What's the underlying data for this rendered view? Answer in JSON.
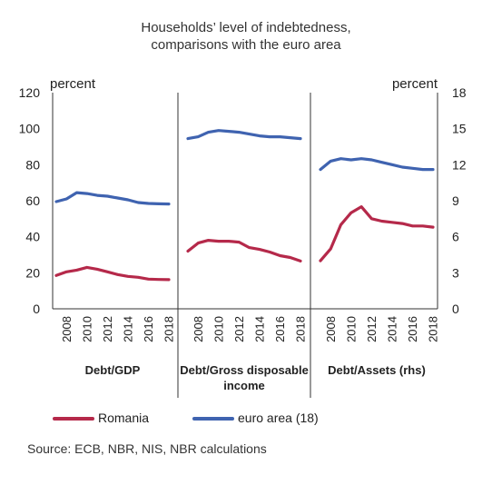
{
  "chart_title": {
    "line1": "Households’ level of indebtedness,",
    "line2": "comparisons with the euro area"
  },
  "axis_units": {
    "left": "percent",
    "right": "percent"
  },
  "legend": {
    "romania_label": "Romania",
    "euro_label": "euro area (18)",
    "romania_color": "#b5294a",
    "euro_color": "#3f63b0"
  },
  "source": "Source: ECB, NBR, NIS, NBR calculations",
  "chart_data": {
    "type": "line",
    "title": "Households’ level of indebtedness, comparisons with the euro area",
    "left_axis": {
      "label": "percent",
      "ylim": [
        0,
        120
      ],
      "ticks": [
        "0",
        "20",
        "40",
        "60",
        "80",
        "100",
        "120"
      ]
    },
    "right_axis": {
      "label": "percent",
      "ylim": [
        0,
        18
      ],
      "ticks": [
        "0",
        "3",
        "6",
        "9",
        "12",
        "15",
        "18"
      ]
    },
    "grid": false,
    "legend_position": "bottom",
    "x_tick_labels": [
      "2008",
      "2010",
      "2012",
      "2014",
      "2016",
      "2018"
    ],
    "panels": [
      {
        "name": "Debt/GDP",
        "axis": "left",
        "x": [
          2007,
          2008,
          2009,
          2010,
          2011,
          2012,
          2013,
          2014,
          2015,
          2016,
          2017,
          2018
        ],
        "series": [
          {
            "name": "Romania",
            "values": [
              18.5,
              20.5,
              21.5,
              23,
              22,
              20.5,
              19,
              18,
              17.5,
              16.5,
              16.3,
              16.2
            ]
          },
          {
            "name": "euro area (18)",
            "values": [
              59.5,
              61,
              64.5,
              64,
              63,
              62.5,
              61.5,
              60.5,
              59,
              58.5,
              58.3,
              58.2
            ]
          }
        ]
      },
      {
        "name": "Debt/Gross disposable income",
        "axis": "left",
        "x": [
          2007,
          2008,
          2009,
          2010,
          2011,
          2012,
          2013,
          2014,
          2015,
          2016,
          2017,
          2018
        ],
        "series": [
          {
            "name": "Romania",
            "values": [
              32,
              36.5,
              38,
              37.5,
              37.5,
              37,
              34,
              33,
              31.5,
              29.5,
              28.5,
              26.5
            ]
          },
          {
            "name": "euro area (18)",
            "values": [
              94.5,
              95.5,
              98,
              99,
              98.5,
              98,
              97,
              96,
              95.5,
              95.5,
              95,
              94.5
            ]
          }
        ]
      },
      {
        "name": "Debt/Assets (rhs)",
        "axis": "right",
        "x": [
          2007,
          2008,
          2009,
          2010,
          2011,
          2012,
          2013,
          2014,
          2015,
          2016,
          2017,
          2018
        ],
        "series": [
          {
            "name": "Romania",
            "values": [
              4,
              5,
              7,
              8,
              8.5,
              7.5,
              7.3,
              7.2,
              7.1,
              6.9,
              6.9,
              6.8
            ]
          },
          {
            "name": "euro area (18)",
            "values": [
              11.6,
              12.3,
              12.5,
              12.4,
              12.5,
              12.4,
              12.2,
              12.0,
              11.8,
              11.7,
              11.6,
              11.6
            ]
          }
        ]
      }
    ],
    "panel_labels": [
      [
        "Debt/GDP"
      ],
      [
        "Debt/Gross disposable",
        "income"
      ],
      [
        "Debt/Assets (rhs)"
      ]
    ]
  }
}
